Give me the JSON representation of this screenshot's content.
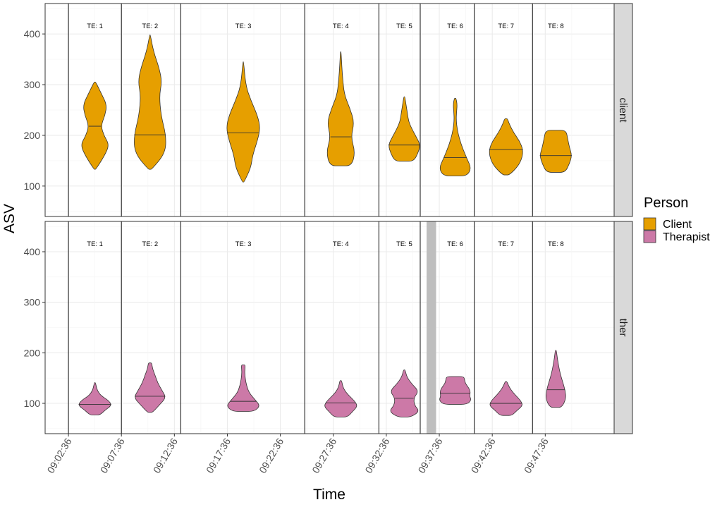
{
  "chart_data": {
    "type": "violin",
    "title": "",
    "xlabel": "Time",
    "ylabel": "ASV",
    "ylim": [
      40,
      460
    ],
    "y_ticks": [
      100,
      200,
      300,
      400
    ],
    "x_ticks": [
      "09:02:36",
      "09:07:36",
      "09:12:36",
      "09:17:36",
      "09:22:36",
      "09:27:36",
      "09:32:36",
      "09:37:36",
      "09:42:36",
      "09:47:36"
    ],
    "x_range_minutes": [
      -2.2,
      51.5
    ],
    "grid": true,
    "legend": {
      "title": "Person",
      "position": "right",
      "entries": [
        {
          "name": "Client",
          "color": "#E69F00"
        },
        {
          "name": "Therapist",
          "color": "#CC79A7"
        }
      ]
    },
    "boundaries_minutes": [
      0,
      5,
      10.6,
      22.3,
      29.3,
      33.2,
      38.3,
      43.8
    ],
    "shaded_region_minutes": {
      "panel": "ther",
      "from": 33.8,
      "to": 34.7,
      "color": "#bebebe"
    },
    "panels": [
      {
        "strip": "client",
        "person": "Client",
        "color": "#E69F00",
        "violins": [
          {
            "label": "TE: 1",
            "center": 2.5,
            "min": 133,
            "median": 218,
            "max": 305,
            "shape": [
              [
                0.0,
                0.05
              ],
              [
                0.15,
                0.55
              ],
              [
                0.28,
                0.85
              ],
              [
                0.38,
                0.55
              ],
              [
                0.5,
                0.35
              ],
              [
                0.62,
                0.6
              ],
              [
                0.74,
                0.7
              ],
              [
                0.86,
                0.4
              ],
              [
                1.0,
                0.05
              ]
            ]
          },
          {
            "label": "TE: 2",
            "center": 7.7,
            "min": 133,
            "median": 201,
            "max": 398,
            "shape": [
              [
                0.0,
                0.1
              ],
              [
                0.12,
                0.9
              ],
              [
                0.25,
                0.95
              ],
              [
                0.4,
                0.65
              ],
              [
                0.55,
                0.55
              ],
              [
                0.65,
                0.7
              ],
              [
                0.75,
                0.55
              ],
              [
                0.88,
                0.2
              ],
              [
                1.0,
                0.02
              ]
            ]
          },
          {
            "label": "TE: 3",
            "center": 16.5,
            "min": 108,
            "median": 205,
            "max": 345,
            "shape": [
              [
                0.0,
                0.05
              ],
              [
                0.12,
                0.45
              ],
              [
                0.22,
                0.55
              ],
              [
                0.35,
                0.85
              ],
              [
                0.45,
                1.0
              ],
              [
                0.55,
                0.85
              ],
              [
                0.68,
                0.45
              ],
              [
                0.8,
                0.15
              ],
              [
                1.0,
                0.02
              ]
            ]
          },
          {
            "label": "TE: 4",
            "center": 25.7,
            "min": 140,
            "median": 197,
            "max": 365,
            "shape": [
              [
                0.0,
                0.65
              ],
              [
                0.12,
                0.85
              ],
              [
                0.25,
                0.6
              ],
              [
                0.38,
                0.8
              ],
              [
                0.5,
                0.55
              ],
              [
                0.62,
                0.22
              ],
              [
                0.75,
                0.12
              ],
              [
                0.88,
                0.06
              ],
              [
                1.0,
                0.02
              ]
            ]
          },
          {
            "label": "TE: 5",
            "center": 31.7,
            "min": 149,
            "median": 181,
            "max": 276,
            "shape": [
              [
                0.0,
                0.55
              ],
              [
                0.12,
                0.8
              ],
              [
                0.25,
                0.95
              ],
              [
                0.38,
                0.7
              ],
              [
                0.5,
                0.45
              ],
              [
                0.62,
                0.25
              ],
              [
                0.75,
                0.18
              ],
              [
                0.88,
                0.1
              ],
              [
                1.0,
                0.03
              ]
            ]
          },
          {
            "label": "TE: 6",
            "center": 36.5,
            "min": 120,
            "median": 156,
            "max": 273,
            "shape": [
              [
                0.0,
                0.7
              ],
              [
                0.1,
                0.95
              ],
              [
                0.22,
                0.7
              ],
              [
                0.35,
                0.45
              ],
              [
                0.48,
                0.25
              ],
              [
                0.6,
                0.12
              ],
              [
                0.72,
                0.06
              ],
              [
                0.82,
                0.08
              ],
              [
                0.92,
                0.12
              ],
              [
                1.0,
                0.05
              ]
            ]
          },
          {
            "label": "TE: 7",
            "center": 41.3,
            "min": 122,
            "median": 172,
            "max": 233,
            "shape": [
              [
                0.0,
                0.2
              ],
              [
                0.15,
                0.7
              ],
              [
                0.3,
                0.95
              ],
              [
                0.45,
                1.0
              ],
              [
                0.6,
                0.8
              ],
              [
                0.75,
                0.45
              ],
              [
                0.9,
                0.2
              ],
              [
                1.0,
                0.08
              ]
            ]
          },
          {
            "label": "TE: 8",
            "center": 46.0,
            "min": 127,
            "median": 160,
            "max": 210,
            "shape": [
              [
                0.0,
                0.55
              ],
              [
                0.2,
                0.8
              ],
              [
                0.4,
                0.95
              ],
              [
                0.6,
                0.8
              ],
              [
                0.8,
                0.7
              ],
              [
                1.0,
                0.6
              ]
            ]
          }
        ]
      },
      {
        "strip": "ther",
        "person": "Therapist",
        "color": "#CC79A7",
        "violins": [
          {
            "label": "TE: 1",
            "center": 2.5,
            "min": 77,
            "median": 98,
            "max": 141,
            "shape": [
              [
                0.0,
                0.3
              ],
              [
                0.15,
                0.6
              ],
              [
                0.3,
                1.0
              ],
              [
                0.45,
                0.8
              ],
              [
                0.6,
                0.35
              ],
              [
                0.75,
                0.15
              ],
              [
                0.88,
                0.08
              ],
              [
                1.0,
                0.03
              ]
            ]
          },
          {
            "label": "TE: 2",
            "center": 7.7,
            "min": 82,
            "median": 114,
            "max": 180,
            "shape": [
              [
                0.0,
                0.15
              ],
              [
                0.15,
                0.55
              ],
              [
                0.3,
                0.95
              ],
              [
                0.45,
                0.7
              ],
              [
                0.6,
                0.45
              ],
              [
                0.75,
                0.3
              ],
              [
                0.88,
                0.15
              ],
              [
                1.0,
                0.1
              ]
            ]
          },
          {
            "label": "TE: 3",
            "center": 16.5,
            "min": 84,
            "median": 104,
            "max": 176,
            "shape": [
              [
                0.0,
                0.65
              ],
              [
                0.12,
                1.0
              ],
              [
                0.25,
                0.7
              ],
              [
                0.4,
                0.35
              ],
              [
                0.55,
                0.2
              ],
              [
                0.7,
                0.12
              ],
              [
                0.85,
                0.08
              ],
              [
                1.0,
                0.12
              ]
            ]
          },
          {
            "label": "TE: 4",
            "center": 25.7,
            "min": 73,
            "median": 101,
            "max": 145,
            "shape": [
              [
                0.0,
                0.4
              ],
              [
                0.15,
                0.7
              ],
              [
                0.3,
                1.0
              ],
              [
                0.45,
                0.8
              ],
              [
                0.6,
                0.45
              ],
              [
                0.75,
                0.2
              ],
              [
                0.88,
                0.1
              ],
              [
                1.0,
                0.05
              ]
            ]
          },
          {
            "label": "TE: 5",
            "center": 31.7,
            "min": 73,
            "median": 110,
            "max": 166,
            "shape": [
              [
                0.0,
                0.4
              ],
              [
                0.12,
                0.9
              ],
              [
                0.25,
                0.6
              ],
              [
                0.4,
                0.55
              ],
              [
                0.55,
                0.85
              ],
              [
                0.7,
                0.45
              ],
              [
                0.85,
                0.15
              ],
              [
                1.0,
                0.05
              ]
            ]
          },
          {
            "label": "TE: 6",
            "center": 36.5,
            "min": 98,
            "median": 120,
            "max": 153,
            "shape": [
              [
                0.0,
                0.7
              ],
              [
                0.15,
                0.95
              ],
              [
                0.3,
                0.85
              ],
              [
                0.45,
                0.9
              ],
              [
                0.6,
                0.8
              ],
              [
                0.75,
                0.6
              ],
              [
                0.9,
                0.55
              ],
              [
                1.0,
                0.5
              ]
            ]
          },
          {
            "label": "TE: 7",
            "center": 41.3,
            "min": 76,
            "median": 100,
            "max": 143,
            "shape": [
              [
                0.0,
                0.35
              ],
              [
                0.15,
                0.65
              ],
              [
                0.3,
                1.0
              ],
              [
                0.45,
                0.85
              ],
              [
                0.6,
                0.55
              ],
              [
                0.75,
                0.3
              ],
              [
                0.88,
                0.15
              ],
              [
                1.0,
                0.05
              ]
            ]
          },
          {
            "label": "TE: 8",
            "center": 46.0,
            "min": 92,
            "median": 127,
            "max": 205,
            "shape": [
              [
                0.0,
                0.35
              ],
              [
                0.15,
                0.6
              ],
              [
                0.3,
                0.55
              ],
              [
                0.45,
                0.4
              ],
              [
                0.6,
                0.25
              ],
              [
                0.75,
                0.15
              ],
              [
                0.88,
                0.08
              ],
              [
                1.0,
                0.03
              ]
            ]
          }
        ]
      }
    ]
  }
}
